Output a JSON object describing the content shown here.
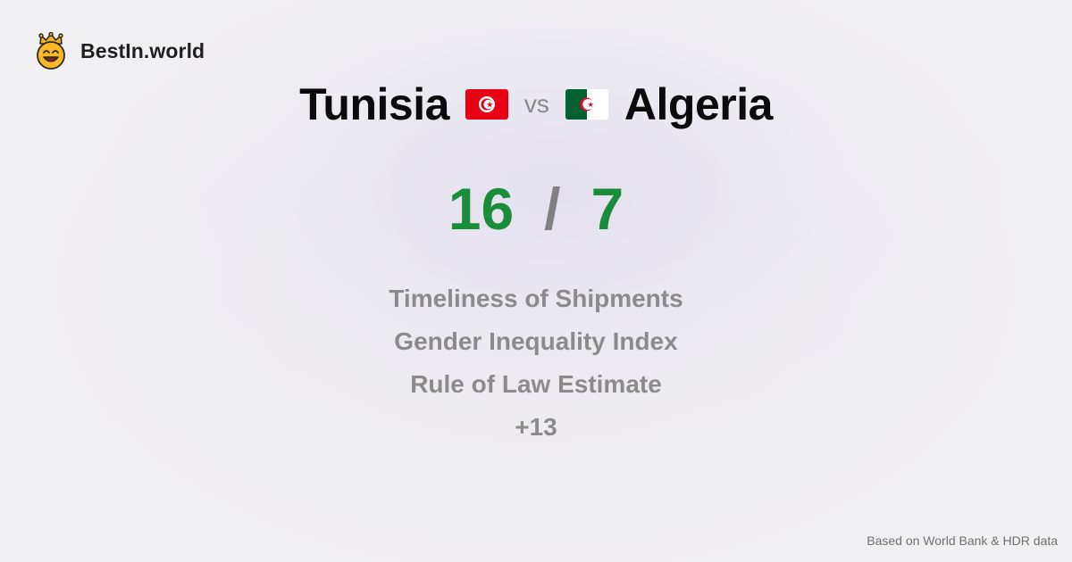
{
  "brand": {
    "name": "BestIn.world",
    "icon": "crowned-smiley-icon"
  },
  "comparison": {
    "left_country": "Tunisia",
    "left_flag": "tunisia-flag-icon",
    "vs_label": "vs",
    "right_country": "Algeria",
    "right_flag": "algeria-flag-icon"
  },
  "score": {
    "left": "16",
    "separator": "/",
    "right": "7"
  },
  "metrics": [
    "Timeliness of Shipments",
    "Gender Inequality Index",
    "Rule of Law Estimate",
    "+13"
  ],
  "footer": {
    "source": "Based on World Bank & HDR data"
  },
  "colors": {
    "score": "#1a8d3a",
    "metric_text": "#8b8b8b",
    "tunisia_red": "#e70013",
    "algeria_green": "#006233"
  }
}
